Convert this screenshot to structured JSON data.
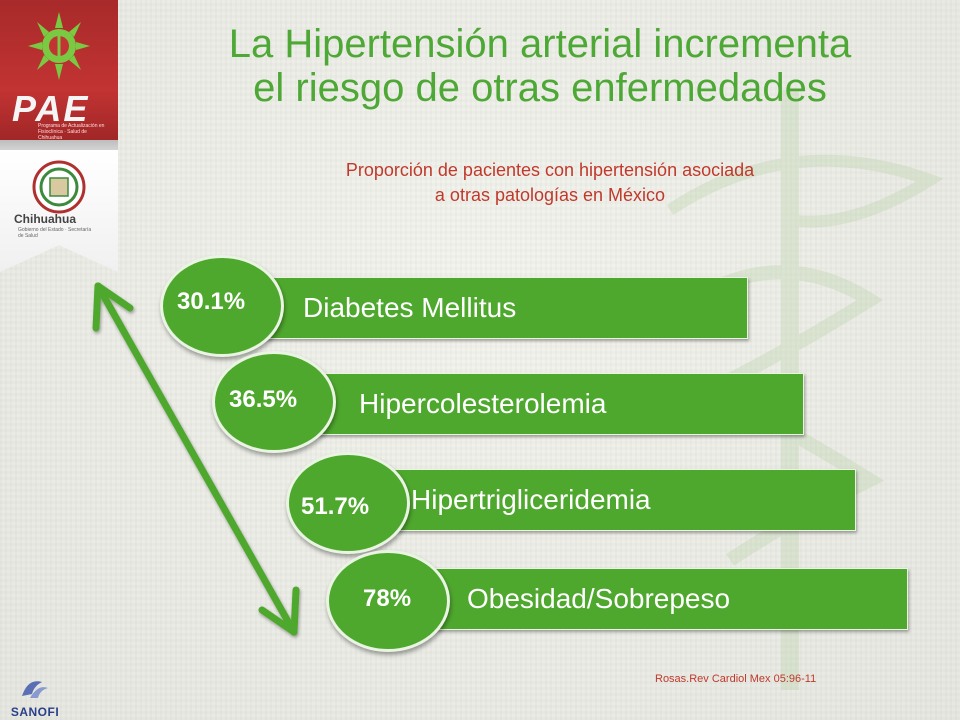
{
  "slide": {
    "title_line1": "La Hipertensión arterial incrementa",
    "title_line2": "el riesgo de otras enfermedades",
    "subtitle_line1": "Proporción de pacientes con hipertensión asociada",
    "subtitle_line2": "a otras patologías en México",
    "citation": "Rosas.Rev Cardiol Mex 05:96-11"
  },
  "logos": {
    "pae_text": "PAE",
    "pae_subtitle": "Programa de Actualización en Fisioclínica · Salud de Chihuahua",
    "state_name": "Chihuahua",
    "state_subtitle": "Gobierno del Estado · Secretaría de Salud",
    "sponsor": "SANOFI"
  },
  "items": [
    {
      "percent": "30.1%",
      "label": "Diabetes Mellitus"
    },
    {
      "percent": "36.5%",
      "label": "Hipercolesterolemia"
    },
    {
      "percent": "51.7%",
      "label": "Hipertrigliceridemia"
    },
    {
      "percent": "78%",
      "label": "Obesidad/Sobrepeso"
    }
  ],
  "colors": {
    "accent_green": "#4fa82e",
    "title_green": "#4ea836",
    "subtitle_red": "#c0392b",
    "ribbon_red": "#c23333"
  }
}
